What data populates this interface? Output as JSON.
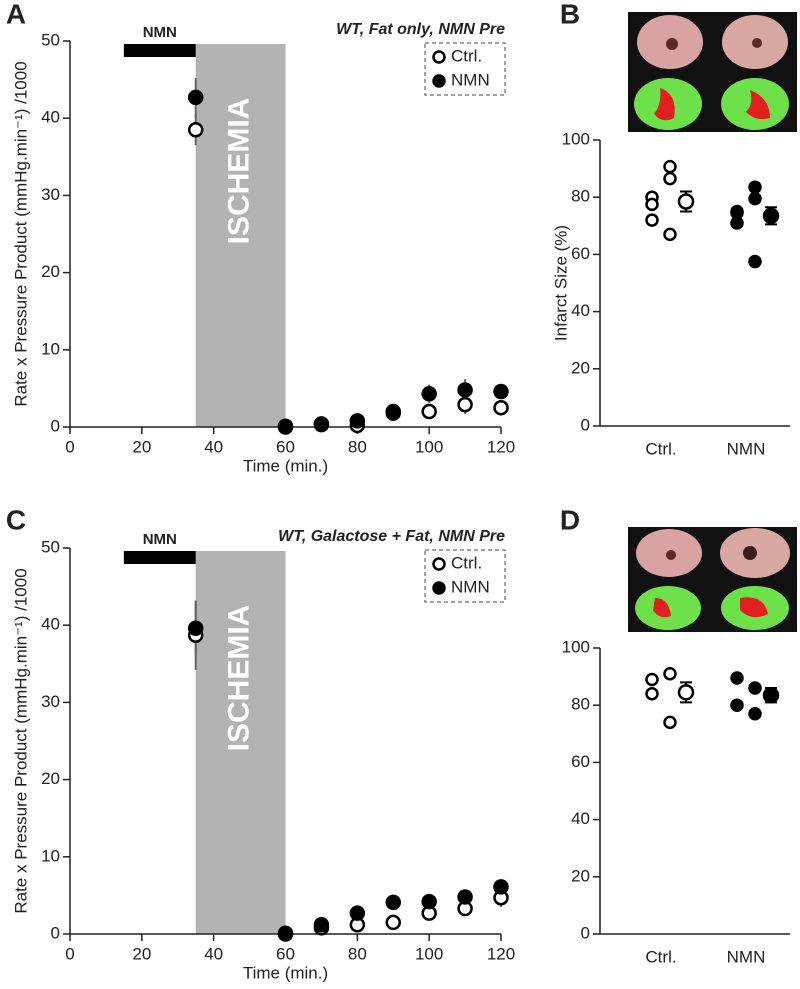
{
  "chart_data": [
    {
      "type": "scatter",
      "panel": "A",
      "title": "WT, Fat only, NMN Pre",
      "xlabel": "Time (min.)",
      "ylabel": "Rate x Pressure Product (mmHg.min⁻¹) /1000",
      "x": [
        35,
        60,
        70,
        80,
        90,
        100,
        110,
        120
      ],
      "series": [
        {
          "name": "Ctrl.",
          "marker": "open",
          "color": "#000",
          "values": [
            38.5,
            0,
            0.3,
            0.2,
            1.8,
            2.0,
            2.9,
            2.5
          ],
          "errors": [
            2.0,
            0.3,
            0.3,
            0.5,
            0.8,
            0.9,
            1.2,
            1.0
          ]
        },
        {
          "name": "NMN",
          "marker": "filled",
          "color": "#000",
          "values": [
            42.7,
            0.1,
            0.4,
            0.8,
            2.0,
            4.3,
            4.8,
            4.6
          ],
          "errors": [
            2.5,
            0.3,
            0.3,
            0.6,
            0.8,
            1.2,
            1.4,
            0.8
          ]
        }
      ],
      "shade": {
        "xlim": [
          35,
          60
        ],
        "label": "ISCHEMIA",
        "color": "#b3b3b3"
      },
      "treatment": {
        "xlim": [
          15,
          35
        ],
        "label": "NMN"
      },
      "xlim": [
        0,
        120
      ],
      "xticks": [
        0,
        20,
        40,
        60,
        80,
        100,
        120
      ],
      "ylim": [
        0,
        50
      ],
      "yticks": [
        0,
        10,
        20,
        30,
        40,
        50
      ]
    },
    {
      "type": "strip",
      "panel": "B",
      "ylabel": "Infarct Size (%)",
      "groups": [
        {
          "name": "Ctrl.",
          "marker": "open",
          "values": [
            80,
            90.7,
            77.5,
            86.5,
            72,
            67
          ],
          "mean": 78.5,
          "error": 3.5
        },
        {
          "name": "NMN",
          "marker": "filled",
          "values": [
            74.5,
            83.5,
            71,
            79.5,
            75,
            57.5
          ],
          "mean": 73.5,
          "error": 3
        }
      ],
      "ylim": [
        0,
        100
      ],
      "yticks": [
        0,
        20,
        40,
        60,
        80,
        100
      ]
    },
    {
      "type": "scatter",
      "panel": "C",
      "title": "WT, Galactose + Fat, NMN Pre",
      "xlabel": "Time (min.)",
      "ylabel": "Rate x Pressure Product (mmHg.min⁻¹) /1000",
      "x": [
        35,
        60,
        70,
        80,
        90,
        100,
        110,
        120
      ],
      "series": [
        {
          "name": "Ctrl.",
          "marker": "open",
          "color": "#000",
          "values": [
            38.7,
            0,
            0.8,
            1.2,
            1.5,
            2.7,
            3.3,
            4.7
          ],
          "errors": [
            4.5,
            0.3,
            0.4,
            0.5,
            0.6,
            0.7,
            0.8,
            1.2
          ]
        },
        {
          "name": "NMN",
          "marker": "filled",
          "color": "#000",
          "values": [
            39.6,
            0.1,
            1.2,
            2.7,
            4.1,
            4.2,
            4.8,
            6.1
          ],
          "errors": [
            3.5,
            0.3,
            0.5,
            0.6,
            0.7,
            1.0,
            0.8,
            0.9
          ]
        }
      ],
      "shade": {
        "xlim": [
          35,
          60
        ],
        "label": "ISCHEMIA",
        "color": "#b3b3b3"
      },
      "treatment": {
        "xlim": [
          15,
          35
        ],
        "label": "NMN"
      },
      "xlim": [
        0,
        120
      ],
      "xticks": [
        0,
        20,
        40,
        60,
        80,
        100,
        120
      ],
      "ylim": [
        0,
        50
      ],
      "yticks": [
        0,
        10,
        20,
        30,
        40,
        50
      ]
    },
    {
      "type": "strip",
      "panel": "D",
      "groups": [
        {
          "name": "Ctrl.",
          "marker": "open",
          "values": [
            89,
            91,
            84,
            74
          ],
          "mean": 84.5,
          "error": 3.5
        },
        {
          "name": "NMN",
          "marker": "filled",
          "values": [
            89.5,
            86,
            80,
            77
          ],
          "mean": 83.5,
          "error": 2.5
        }
      ],
      "ylim": [
        0,
        100
      ],
      "yticks": [
        0,
        20,
        40,
        60,
        80,
        100
      ]
    }
  ]
}
